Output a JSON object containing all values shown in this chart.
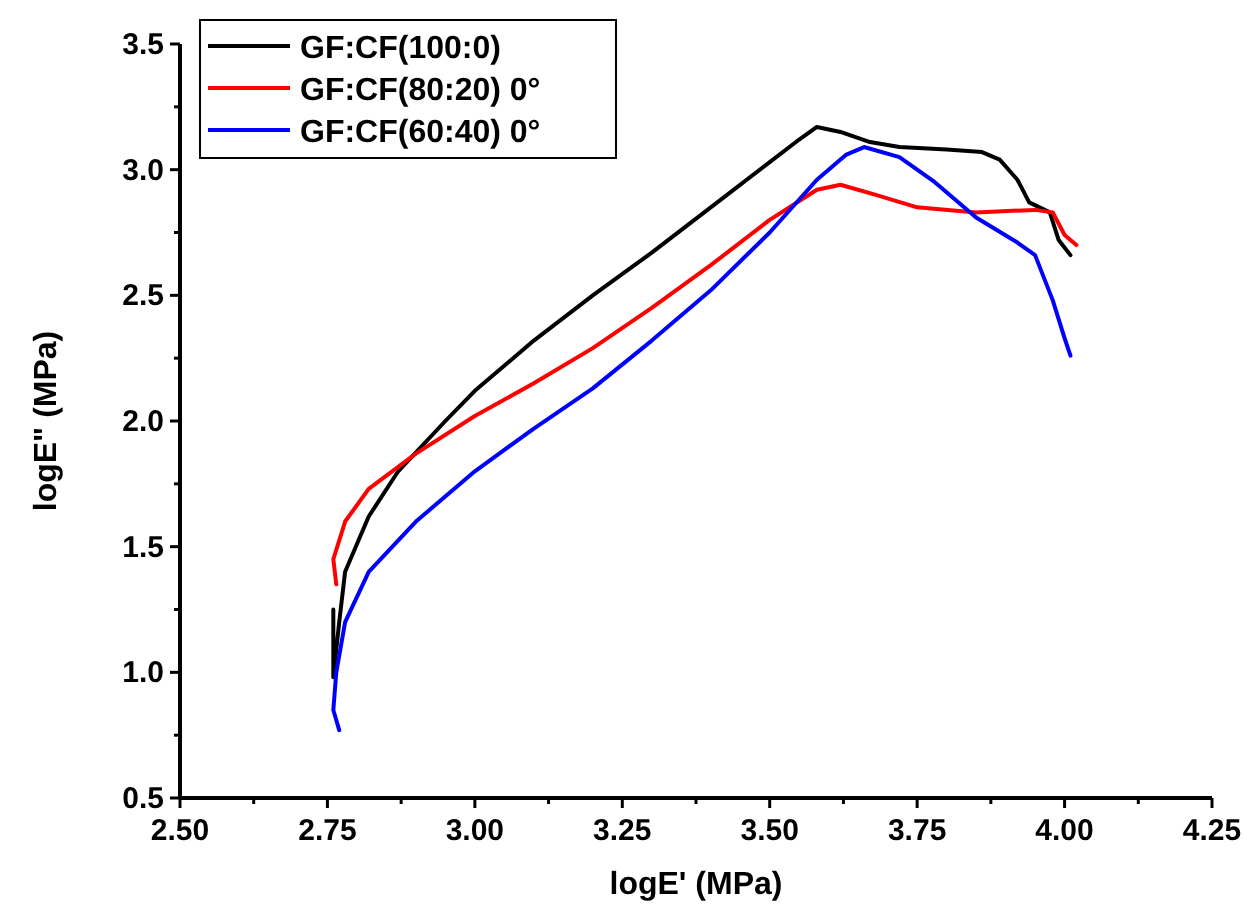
{
  "chart_data": {
    "type": "line",
    "xlabel": "logE' (MPa)",
    "ylabel": "logE\" (MPa)",
    "xlim": [
      2.5,
      4.25
    ],
    "ylim": [
      0.5,
      3.5
    ],
    "xticks": [
      {
        "value": 2.5,
        "label": "2.50"
      },
      {
        "value": 2.625,
        "label": null
      },
      {
        "value": 2.75,
        "label": "2.75"
      },
      {
        "value": 2.875,
        "label": null
      },
      {
        "value": 3.0,
        "label": "3.00"
      },
      {
        "value": 3.125,
        "label": null
      },
      {
        "value": 3.25,
        "label": "3.25"
      },
      {
        "value": 3.375,
        "label": null
      },
      {
        "value": 3.5,
        "label": "3.50"
      },
      {
        "value": 3.625,
        "label": null
      },
      {
        "value": 3.75,
        "label": "3.75"
      },
      {
        "value": 3.875,
        "label": null
      },
      {
        "value": 4.0,
        "label": "4.00"
      },
      {
        "value": 4.125,
        "label": null
      },
      {
        "value": 4.25,
        "label": "4.25"
      }
    ],
    "yticks": [
      0.5,
      {
        "value": 0.75,
        "label": null
      },
      {
        "value": 1.0,
        "label": "1.0"
      },
      {
        "value": 1.25,
        "label": null
      },
      1.5,
      {
        "value": 1.75,
        "label": null
      },
      {
        "value": 2.0,
        "label": "2.0"
      },
      {
        "value": 2.25,
        "label": null
      },
      2.5,
      {
        "value": 2.75,
        "label": null
      },
      {
        "value": 3.0,
        "label": "3.0"
      },
      {
        "value": 3.25,
        "label": null
      },
      3.5
    ],
    "legend": "top left",
    "grid": false,
    "marker": "none",
    "line_style": "solid",
    "series": [
      {
        "name": "GF:CF(100:0)",
        "color": "#000000",
        "x": [
          2.76,
          2.76,
          2.77,
          2.78,
          2.82,
          2.87,
          2.95,
          3.0,
          3.1,
          3.2,
          3.3,
          3.4,
          3.5,
          3.55,
          3.58,
          3.62,
          3.67,
          3.72,
          3.8,
          3.86,
          3.89,
          3.92,
          3.94,
          3.975,
          3.99,
          4.01
        ],
        "values": [
          1.25,
          0.98,
          1.2,
          1.4,
          1.62,
          1.8,
          2.0,
          2.12,
          2.32,
          2.5,
          2.67,
          2.85,
          3.03,
          3.12,
          3.17,
          3.15,
          3.11,
          3.09,
          3.08,
          3.07,
          3.04,
          2.96,
          2.87,
          2.83,
          2.72,
          2.66
        ]
      },
      {
        "name": "GF:CF(80:20) 0°",
        "color": "#ff0000",
        "x": [
          2.765,
          2.76,
          2.78,
          2.82,
          2.9,
          3.0,
          3.1,
          3.2,
          3.3,
          3.4,
          3.5,
          3.58,
          3.62,
          3.68,
          3.75,
          3.85,
          3.95,
          3.98,
          4.0,
          4.02
        ],
        "values": [
          1.35,
          1.45,
          1.6,
          1.73,
          1.87,
          2.02,
          2.15,
          2.29,
          2.45,
          2.62,
          2.8,
          2.92,
          2.94,
          2.9,
          2.85,
          2.83,
          2.84,
          2.83,
          2.74,
          2.7
        ]
      },
      {
        "name": "GF:CF(60:40) 0°",
        "color": "#0000ff",
        "x": [
          2.77,
          2.76,
          2.765,
          2.78,
          2.82,
          2.9,
          3.0,
          3.1,
          3.2,
          3.3,
          3.4,
          3.5,
          3.58,
          3.63,
          3.66,
          3.72,
          3.78,
          3.85,
          3.92,
          3.95,
          3.98,
          4.0,
          4.01
        ],
        "values": [
          0.77,
          0.85,
          1.0,
          1.2,
          1.4,
          1.6,
          1.8,
          1.97,
          2.13,
          2.32,
          2.52,
          2.75,
          2.96,
          3.06,
          3.09,
          3.05,
          2.95,
          2.81,
          2.71,
          2.66,
          2.48,
          2.33,
          2.26
        ]
      }
    ]
  }
}
